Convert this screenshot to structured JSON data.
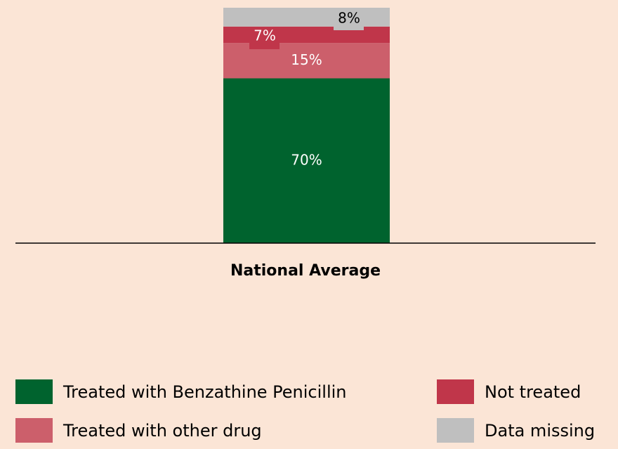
{
  "chart_data": {
    "type": "stacked_bar",
    "categories": [
      "National Average"
    ],
    "series": [
      {
        "name": "Treated with Benzathine Penicillin",
        "color": "#00632e",
        "values": [
          70
        ],
        "value_labels": [
          "70%"
        ]
      },
      {
        "name": "Treated with other drug",
        "color": "#cc5f6b",
        "values": [
          15
        ],
        "value_labels": [
          "15%"
        ]
      },
      {
        "name": "Not treated",
        "color": "#c0364a",
        "values": [
          7
        ],
        "value_labels": [
          "7%"
        ]
      },
      {
        "name": "Data missing",
        "color": "#bfbfbf",
        "values": [
          8
        ],
        "value_labels": [
          "8%"
        ]
      }
    ],
    "ylim": [
      0,
      100
    ]
  }
}
